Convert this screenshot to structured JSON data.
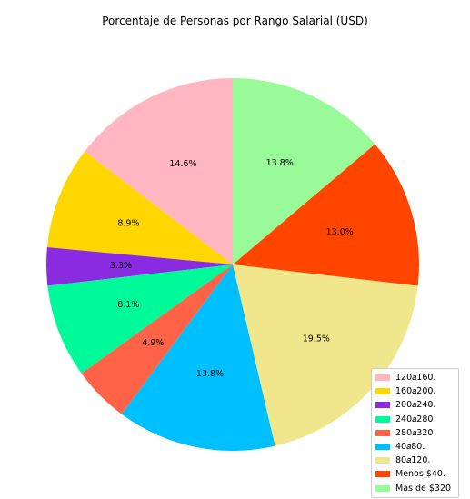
{
  "chart_data": {
    "type": "pie",
    "title": "Porcentaje de Personas por Rango Salarial (USD)",
    "start_angle_deg": 90,
    "direction": "counterclockwise",
    "legend_position": "lower-right",
    "slices": [
      {
        "label": "120$a$160.",
        "legend_text": "120𝑎160.",
        "value": 14.6,
        "pct_label": "14.6%",
        "color": "#FFB6C1"
      },
      {
        "label": "160$a$200.",
        "legend_text": "160𝑎200.",
        "value": 8.9,
        "pct_label": "8.9%",
        "color": "#FFD700"
      },
      {
        "label": "200$a$240.",
        "legend_text": "200𝑎240.",
        "value": 3.3,
        "pct_label": "3.3%",
        "color": "#8A2BE2"
      },
      {
        "label": "240$a$280",
        "legend_text": "240𝑎280",
        "value": 8.1,
        "pct_label": "8.1%",
        "color": "#00FA9A"
      },
      {
        "label": "280$a$320",
        "legend_text": "280𝑎320",
        "value": 4.9,
        "pct_label": "4.9%",
        "color": "#FF6347"
      },
      {
        "label": "40$a$80.",
        "legend_text": "40𝑎80.",
        "value": 13.8,
        "pct_label": "13.8%",
        "color": "#00BFFF"
      },
      {
        "label": "80$a$120.",
        "legend_text": "80𝑎120.",
        "value": 19.5,
        "pct_label": "19.5%",
        "color": "#F0E68C"
      },
      {
        "label": "Menos $40.",
        "legend_text": "Menos $40.",
        "value": 13.0,
        "pct_label": "13.0%",
        "color": "#FF4500"
      },
      {
        "label": "Más de $320",
        "legend_text": "Más de $320",
        "value": 13.8,
        "pct_label": "13.8%",
        "color": "#98FB98"
      }
    ]
  }
}
